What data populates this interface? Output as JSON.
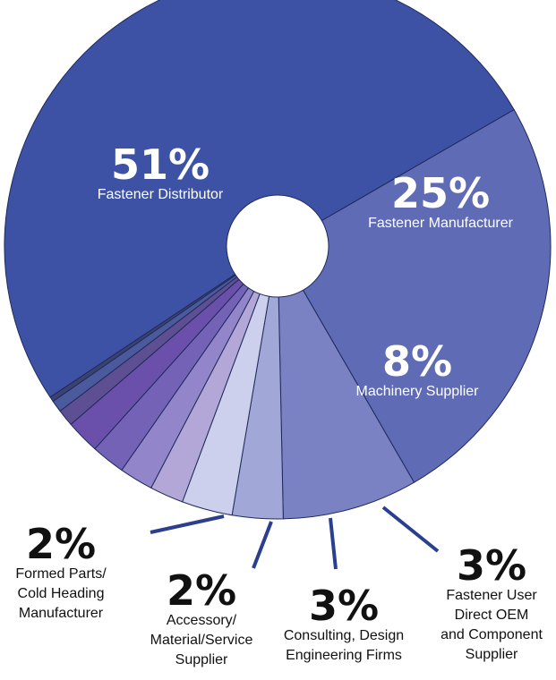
{
  "chart_data": {
    "type": "pie",
    "style": "donut",
    "start_angle_deg": 60,
    "direction": "clockwise",
    "slices": [
      {
        "pct": 25,
        "value_label": "25%",
        "label_lines": [
          "Fastener Manufacturer"
        ],
        "color": "#5f6bb4"
      },
      {
        "pct": 8,
        "value_label": "8%",
        "label_lines": [
          "Machinery Supplier"
        ],
        "color": "#7a82c4"
      },
      {
        "pct": 3,
        "value_label": "3%",
        "label_lines": [
          "Fastener User",
          "Direct OEM",
          "and Component",
          "Supplier"
        ],
        "color": "#a1a7d7"
      },
      {
        "pct": 3,
        "value_label": "3%",
        "label_lines": [
          "Consulting, Design",
          "Engineering Firms"
        ],
        "color": "#cdd0ec"
      },
      {
        "pct": 2,
        "value_label": "2%",
        "label_lines": [
          "Accessory/",
          "Material/Service",
          "Supplier"
        ],
        "color": "#b2a7d6"
      },
      {
        "pct": 2,
        "value_label": "",
        "label_lines": [],
        "color": "#9385c9"
      },
      {
        "pct": 2,
        "value_label": "2%",
        "label_lines": [
          "Formed Parts/",
          "Cold Heading",
          "Manufacturer"
        ],
        "color": "#7462b6"
      },
      {
        "pct": 2,
        "value_label": "",
        "label_lines": [],
        "color": "#6a50ab"
      },
      {
        "pct": 1,
        "value_label": "",
        "label_lines": [],
        "color": "#5d4f91"
      },
      {
        "pct": 0.7,
        "value_label": "",
        "label_lines": [],
        "color": "#4b5a9c"
      },
      {
        "pct": 0.3,
        "value_label": "",
        "label_lines": [],
        "color": "#3a4270"
      },
      {
        "pct": 51,
        "value_label": "51%",
        "label_lines": [
          "Fastener Distributor"
        ],
        "color": "#3d52a5"
      }
    ],
    "callout_color": "#2b3f8f",
    "edge_color": "#1f2a5c",
    "label_color_inside": "#ffffff",
    "label_color_outside": "#111111"
  }
}
